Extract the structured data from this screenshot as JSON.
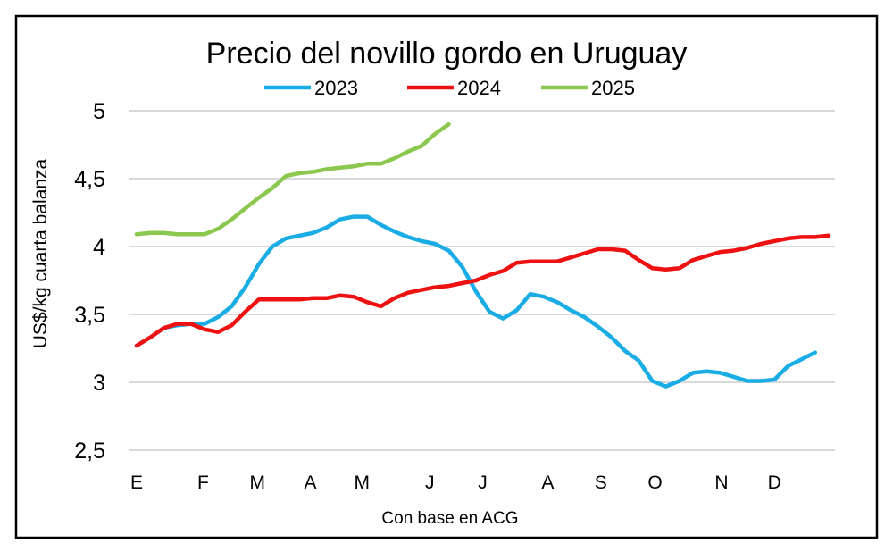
{
  "chart_data": {
    "type": "line",
    "title": "Precio del novillo gordo en Uruguay",
    "xlabel": "Con base en ACG",
    "ylabel": "US$/kg cuarta balanza",
    "ylim": [
      2.5,
      5
    ],
    "yticks": [
      "2,5",
      "3",
      "3,5",
      "4",
      "4,5",
      "5"
    ],
    "ytick_values": [
      2.5,
      3,
      3.5,
      4,
      4.5,
      5
    ],
    "xlim": [
      1,
      52
    ],
    "xticks": [
      {
        "label": "E",
        "week": 1
      },
      {
        "label": "F",
        "week": 5.9
      },
      {
        "label": "M",
        "week": 9.9
      },
      {
        "label": "A",
        "week": 13.8
      },
      {
        "label": "M",
        "week": 17.6
      },
      {
        "label": "J",
        "week": 22.6
      },
      {
        "label": "J",
        "week": 26.5
      },
      {
        "label": "A",
        "week": 31.3
      },
      {
        "label": "S",
        "week": 35.2
      },
      {
        "label": "O",
        "week": 39.2
      },
      {
        "label": "N",
        "week": 44.1
      },
      {
        "label": "D",
        "week": 48.0
      }
    ],
    "grid": true,
    "legend_position": "top",
    "series": [
      {
        "name": "2023",
        "color": "#1AACE4",
        "values": [
          3.27,
          3.33,
          3.4,
          3.42,
          3.43,
          3.43,
          3.48,
          3.56,
          3.7,
          3.87,
          4.0,
          4.06,
          4.08,
          4.1,
          4.14,
          4.2,
          4.22,
          4.22,
          4.16,
          4.11,
          4.07,
          4.04,
          4.02,
          3.97,
          3.85,
          3.67,
          3.52,
          3.47,
          3.53,
          3.65,
          3.63,
          3.59,
          3.53,
          3.48,
          3.41,
          3.33,
          3.23,
          3.16,
          3.01,
          2.97,
          3.01,
          3.07,
          3.08,
          3.07,
          3.04,
          3.01,
          3.01,
          3.02,
          3.12,
          3.17,
          3.22
        ]
      },
      {
        "name": "2024",
        "color": "#EE1111",
        "values": [
          3.27,
          3.33,
          3.4,
          3.43,
          3.43,
          3.39,
          3.37,
          3.42,
          3.52,
          3.61,
          3.61,
          3.61,
          3.61,
          3.62,
          3.62,
          3.64,
          3.63,
          3.59,
          3.56,
          3.62,
          3.66,
          3.68,
          3.7,
          3.71,
          3.73,
          3.75,
          3.79,
          3.82,
          3.88,
          3.89,
          3.89,
          3.89,
          3.92,
          3.95,
          3.98,
          3.98,
          3.97,
          3.9,
          3.84,
          3.83,
          3.84,
          3.9,
          3.93,
          3.96,
          3.97,
          3.99,
          4.02,
          4.04,
          4.06,
          4.07,
          4.07,
          4.08
        ]
      },
      {
        "name": "2025",
        "color": "#8CC850",
        "values": [
          4.09,
          4.1,
          4.1,
          4.09,
          4.09,
          4.09,
          4.13,
          4.2,
          4.28,
          4.36,
          4.43,
          4.52,
          4.54,
          4.55,
          4.57,
          4.58,
          4.59,
          4.61,
          4.61,
          4.65,
          4.7,
          4.74,
          4.83,
          4.9
        ]
      }
    ]
  }
}
